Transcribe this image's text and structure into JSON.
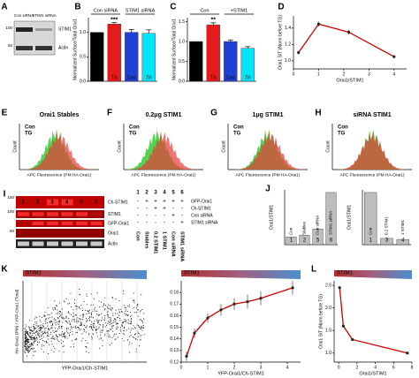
{
  "panel_labels": [
    "A",
    "B",
    "C",
    "D",
    "E",
    "F",
    "G",
    "H",
    "I",
    "J",
    "K",
    "L"
  ],
  "blot_A": {
    "lanes": [
      "Con siRNA",
      "STIM1 siRNA"
    ],
    "bands": [
      "STIM1",
      "Actin"
    ],
    "markers": [
      "100",
      "50"
    ]
  },
  "chart_data": [
    {
      "type": "bar",
      "ylabel": "Normalized Surface/Total Orai1",
      "groups": [
        "Con siRNA",
        "STIM1 siRNA"
      ],
      "categories": [
        "Con",
        "TG",
        "Con",
        "TG"
      ],
      "values": [
        1.0,
        1.17,
        1.0,
        0.98
      ],
      "errors": [
        0,
        0.03,
        0.06,
        0.07
      ],
      "colors": [
        "#000000",
        "#e41a1c",
        "#1f3fd6",
        "#00e5ff"
      ],
      "annotations": [
        "***"
      ],
      "ylim": [
        0,
        1.3
      ],
      "yticks": [
        {
          "value": 0,
          "label": "0.0"
        },
        0.5,
        {
          "value": 1,
          "label": "1.0"
        }
      ]
    },
    {
      "type": "bar",
      "ylabel": "Normalized Surface/Total Orai1",
      "groups": [
        "Con",
        "+STIM1"
      ],
      "categories": [
        "Con",
        "TG",
        "Con",
        "TG"
      ],
      "values": [
        1.0,
        1.42,
        1.0,
        0.83
      ],
      "errors": [
        0,
        0.05,
        0.04,
        0.04
      ],
      "colors": [
        "#000000",
        "#e41a1c",
        "#1f3fd6",
        "#00e5ff"
      ],
      "annotations": [
        "**"
      ],
      "ylim": [
        0,
        1.6
      ],
      "yticks": [
        {
          "value": 0,
          "label": "0.0"
        },
        0.5,
        {
          "value": 1,
          "label": "1.0"
        },
        1.5
      ]
    },
    {
      "type": "line",
      "ylabel": "Orai1 S/T (Norm before TG)",
      "xlabel": "Orai1/STIM1",
      "x": [
        0.2,
        1.0,
        2.2,
        4.0
      ],
      "values": [
        1.1,
        1.45,
        1.35,
        1.05
      ],
      "errors": [
        0.02,
        0.03,
        0.03,
        0.02
      ],
      "color": "#d00000",
      "xlim": [
        0,
        4.5
      ],
      "ylim": [
        0.9,
        1.55
      ],
      "xticks": [
        0,
        1,
        2,
        3,
        4
      ],
      "yticks": [
        {
          "value": 1,
          "label": "1.0"
        },
        1.2,
        1.4
      ]
    },
    {
      "type": "bar",
      "ylabel": "Orai1/STIM1",
      "categories": [
        "Con",
        "Stables",
        "Con siRNA",
        "STIM1 siRNA"
      ],
      "lane_numbers": [
        "1",
        "2",
        "5",
        "6"
      ],
      "values": [
        0.15,
        0.18,
        0.3,
        1.0
      ],
      "color": "#bdbdbd",
      "ylim": [
        0,
        1.05
      ]
    },
    {
      "type": "bar",
      "ylabel": "Orai1/STIM1",
      "categories": [
        "Con",
        "0.2 STIM1",
        "1 STIM1"
      ],
      "lane_numbers": [
        "1",
        "3",
        "4"
      ],
      "values": [
        1.0,
        0.12,
        0.1
      ],
      "color": "#bdbdbd",
      "ylim": [
        0,
        1.05
      ]
    },
    {
      "type": "line",
      "banner": "STIM1",
      "xlabel": "YFP-Orai1/Ch-STIM1",
      "x": [
        0.2,
        0.5,
        1.0,
        1.5,
        2.0,
        2.5,
        3.0,
        4.2
      ],
      "values": [
        0.125,
        0.145,
        0.158,
        0.165,
        0.17,
        0.172,
        0.175,
        0.184
      ],
      "errors": [
        0.004,
        0.004,
        0.004,
        0.005,
        0.005,
        0.006,
        0.006,
        0.006
      ],
      "color": "#d00000",
      "xlim": [
        0,
        4.5
      ],
      "ylim": [
        0.12,
        0.19
      ],
      "xticks": [
        0,
        1,
        2,
        3,
        4
      ],
      "yticks": [
        0.12,
        0.13,
        0.14,
        0.15,
        0.16,
        0.17,
        0.18
      ]
    },
    {
      "type": "line",
      "banner": "STIM1",
      "ylabel": "Orai1 S/T (Norm before TG)",
      "xlabel": "Orai1/STIM1",
      "x": [
        0.1,
        0.5,
        1.5,
        7.5
      ],
      "values": [
        2.45,
        1.6,
        1.3,
        1.0
      ],
      "color": "#d00000",
      "xlim": [
        -0.5,
        8
      ],
      "ylim": [
        0.8,
        2.6
      ],
      "xticks": [
        0,
        2,
        4,
        6,
        8
      ],
      "yticks": [
        {
          "value": 1,
          "label": "1.0"
        },
        1.5,
        {
          "value": 2,
          "label": "2.0"
        },
        2.5
      ]
    }
  ],
  "histograms": [
    {
      "title": "Orai1 Stables",
      "legend": [
        "Con",
        "TG"
      ],
      "colors": [
        "#33cc33",
        "#e83a3a"
      ],
      "xlabel": "APC Fluorescence (PM HA-Orai1)",
      "ylabel": "Count"
    },
    {
      "title": "0.2μg STIM1",
      "legend": [
        "Con",
        "TG"
      ],
      "colors": [
        "#33cc33",
        "#e83a3a"
      ],
      "xlabel": "APC Fluorescence (PM HA-Orai1)",
      "ylabel": "Count"
    },
    {
      "title": "1μg STIM1",
      "legend": [
        "Con",
        "TG"
      ],
      "colors": [
        "#33cc33",
        "#e83a3a"
      ],
      "xlabel": "APC Fluorescence (PM HA-Orai1)",
      "ylabel": "Count"
    },
    {
      "title": "siRNA STIM1",
      "legend": [
        "Con",
        "TG"
      ],
      "colors": [
        "#33cc33",
        "#e83a3a"
      ],
      "xlabel": "APC Fluorescence (PM HA-Orai1)",
      "ylabel": "Count"
    }
  ],
  "blot_I": {
    "lane_numbers": [
      "1",
      "2",
      "3",
      "4",
      "5",
      "6"
    ],
    "bands": [
      "Ch-STIM1",
      "STIM1",
      "GFP-Orai1",
      "Orai1",
      "Actin"
    ],
    "markers": [
      "150",
      "100",
      "50"
    ]
  },
  "table_I": {
    "header": [
      "1",
      "2",
      "3",
      "4",
      "5",
      "6"
    ],
    "rows": [
      {
        "label": "GFP-Orai1",
        "cells": [
          "-",
          "+",
          "+",
          "+",
          "+",
          "+"
        ]
      },
      {
        "label": "Ch-STIM1",
        "cells": [
          "-",
          "-",
          "+",
          "+",
          "-",
          "-"
        ]
      },
      {
        "label": "Con siRNA",
        "cells": [
          "-",
          "-",
          "-",
          "-",
          "+",
          "-"
        ]
      },
      {
        "label": "STIM1 siRNA",
        "cells": [
          "-",
          "-",
          "-",
          "-",
          "-",
          "+"
        ]
      }
    ],
    "conditions": [
      "Con",
      "Stables",
      "0.2 STIM1",
      "1 STIM1",
      "Con siRNA",
      "STIM1 siRNA"
    ]
  },
  "panel_K": {
    "banner": "STIM1",
    "ylabel": "HA-Orai1 (PM) / YFP-Orai1 (Total)",
    "xlabel": "YFP-Orai1/Ch-STIM1"
  }
}
